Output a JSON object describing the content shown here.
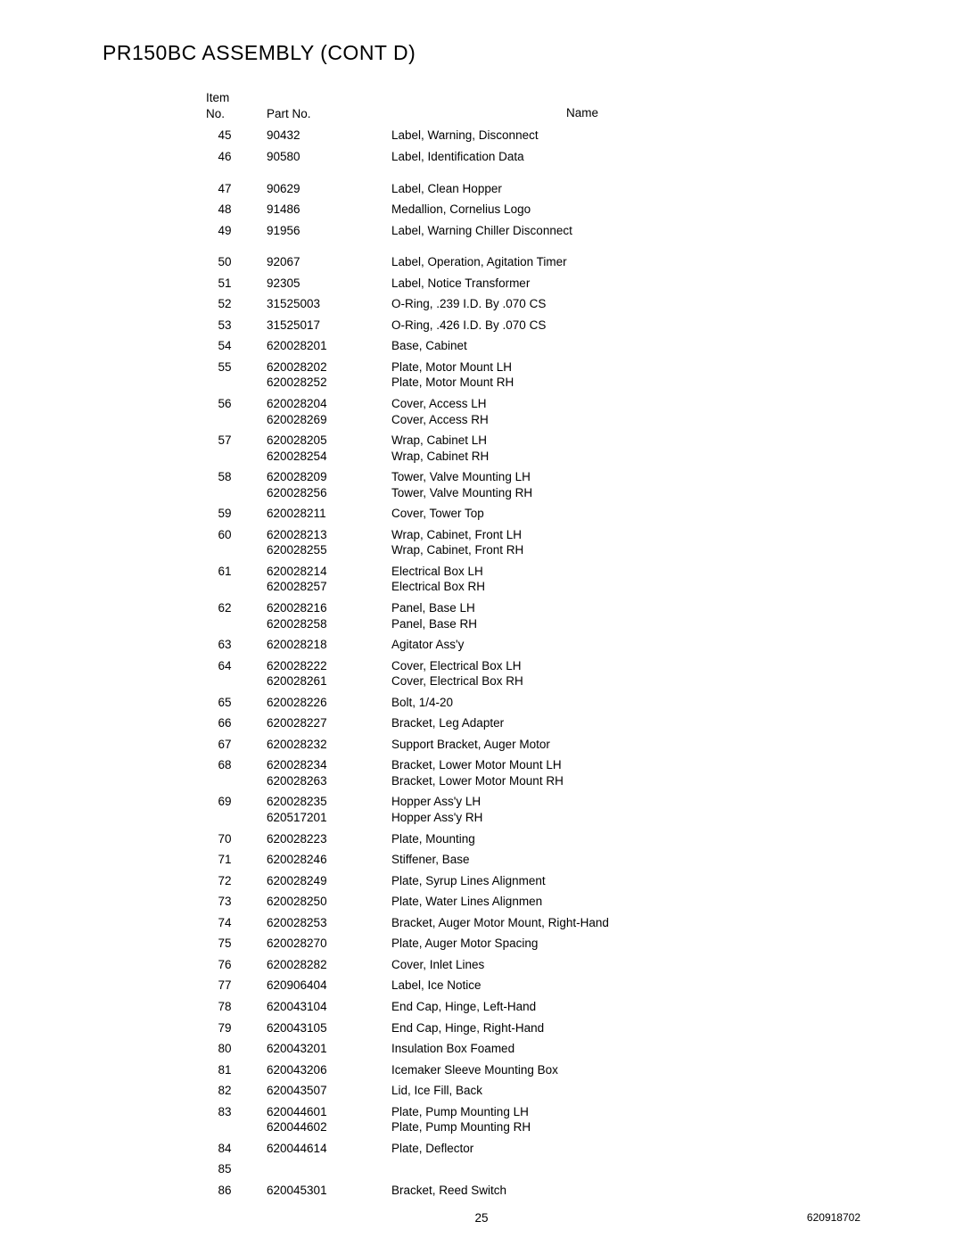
{
  "title": "PR150BC ASSEMBLY  (CONT D)",
  "headers": {
    "item_no_line1": "Item",
    "item_no_line2": "No.",
    "part_no": "Part No.",
    "name": "Name"
  },
  "rows": [
    {
      "item": "45",
      "parts": [
        "90432"
      ],
      "names": [
        "Label, Warning, Disconnect"
      ]
    },
    {
      "item": "46",
      "parts": [
        "90580"
      ],
      "names": [
        "Label, Identification Data"
      ]
    },
    {
      "item": "47",
      "parts": [
        "90629"
      ],
      "names": [
        "Label, Clean Hopper"
      ],
      "gap": true
    },
    {
      "item": "48",
      "parts": [
        "91486"
      ],
      "names": [
        "Medallion, Cornelius Logo"
      ]
    },
    {
      "item": "49",
      "parts": [
        "91956"
      ],
      "names": [
        "Label, Warning Chiller Disconnect"
      ]
    },
    {
      "item": "50",
      "parts": [
        "92067"
      ],
      "names": [
        "Label, Operation, Agitation Timer"
      ],
      "gap": true
    },
    {
      "item": "51",
      "parts": [
        "92305"
      ],
      "names": [
        "Label, Notice Transformer"
      ]
    },
    {
      "item": "52",
      "parts": [
        "31525003"
      ],
      "names": [
        "O-Ring, .239 I.D. By .070 CS"
      ]
    },
    {
      "item": "53",
      "parts": [
        "31525017"
      ],
      "names": [
        "O-Ring, .426 I.D. By .070 CS"
      ]
    },
    {
      "item": "54",
      "parts": [
        "620028201"
      ],
      "names": [
        "Base, Cabinet"
      ]
    },
    {
      "item": "55",
      "parts": [
        "620028202",
        "620028252"
      ],
      "names": [
        "Plate, Motor Mount LH",
        "Plate, Motor Mount RH"
      ]
    },
    {
      "item": "56",
      "parts": [
        "620028204",
        "620028269"
      ],
      "names": [
        "Cover, Access LH",
        "Cover, Access RH"
      ]
    },
    {
      "item": "57",
      "parts": [
        "620028205",
        "620028254"
      ],
      "names": [
        "Wrap, Cabinet LH",
        "Wrap, Cabinet RH"
      ]
    },
    {
      "item": "58",
      "parts": [
        "620028209",
        "620028256"
      ],
      "names": [
        "Tower, Valve Mounting LH",
        "Tower, Valve Mounting RH"
      ]
    },
    {
      "item": "59",
      "parts": [
        "620028211"
      ],
      "names": [
        "Cover, Tower Top"
      ]
    },
    {
      "item": "60",
      "parts": [
        "620028213",
        "620028255"
      ],
      "names": [
        "Wrap, Cabinet, Front LH",
        "Wrap, Cabinet, Front RH"
      ]
    },
    {
      "item": "61",
      "parts": [
        "620028214",
        "620028257"
      ],
      "names": [
        "Electrical Box LH",
        "Electrical Box RH"
      ]
    },
    {
      "item": "62",
      "parts": [
        "620028216",
        "620028258"
      ],
      "names": [
        "Panel, Base LH",
        "Panel, Base RH"
      ]
    },
    {
      "item": "63",
      "parts": [
        "620028218"
      ],
      "names": [
        "Agitator Ass'y"
      ]
    },
    {
      "item": "64",
      "parts": [
        "620028222",
        "620028261"
      ],
      "names": [
        "Cover, Electrical Box LH",
        "Cover, Electrical Box RH"
      ]
    },
    {
      "item": "65",
      "parts": [
        "620028226"
      ],
      "names": [
        "Bolt, 1/4-20"
      ]
    },
    {
      "item": "66",
      "parts": [
        "620028227"
      ],
      "names": [
        "Bracket, Leg Adapter"
      ]
    },
    {
      "item": "67",
      "parts": [
        "620028232"
      ],
      "names": [
        "Support Bracket, Auger Motor"
      ]
    },
    {
      "item": "68",
      "parts": [
        "620028234",
        "620028263"
      ],
      "names": [
        "Bracket, Lower Motor Mount LH",
        "Bracket, Lower Motor Mount RH"
      ]
    },
    {
      "item": "69",
      "parts": [
        "620028235",
        "620517201"
      ],
      "names": [
        "Hopper Ass'y LH",
        "Hopper Ass'y RH"
      ]
    },
    {
      "item": "70",
      "parts": [
        "620028223"
      ],
      "names": [
        "Plate, Mounting"
      ]
    },
    {
      "item": "71",
      "parts": [
        "620028246"
      ],
      "names": [
        "Stiffener, Base"
      ]
    },
    {
      "item": "72",
      "parts": [
        "620028249"
      ],
      "names": [
        "Plate, Syrup Lines Alignment"
      ]
    },
    {
      "item": "73",
      "parts": [
        "620028250"
      ],
      "names": [
        "Plate, Water Lines Alignmen"
      ]
    },
    {
      "item": "74",
      "parts": [
        "620028253"
      ],
      "names": [
        "Bracket, Auger Motor Mount, Right-Hand"
      ]
    },
    {
      "item": "75",
      "parts": [
        "620028270"
      ],
      "names": [
        "Plate, Auger Motor Spacing"
      ]
    },
    {
      "item": "76",
      "parts": [
        "620028282"
      ],
      "names": [
        "Cover, Inlet Lines"
      ]
    },
    {
      "item": "77",
      "parts": [
        "620906404"
      ],
      "names": [
        "Label, Ice Notice"
      ]
    },
    {
      "item": "78",
      "parts": [
        "620043104"
      ],
      "names": [
        "End Cap, Hinge, Left-Hand"
      ]
    },
    {
      "item": "79",
      "parts": [
        "620043105"
      ],
      "names": [
        "End Cap, Hinge, Right-Hand"
      ]
    },
    {
      "item": "80",
      "parts": [
        "620043201"
      ],
      "names": [
        "Insulation Box Foamed"
      ]
    },
    {
      "item": "81",
      "parts": [
        "620043206"
      ],
      "names": [
        "Icemaker Sleeve Mounting Box"
      ]
    },
    {
      "item": "82",
      "parts": [
        "620043507"
      ],
      "names": [
        "Lid, Ice Fill, Back"
      ]
    },
    {
      "item": "83",
      "parts": [
        "620044601",
        "620044602"
      ],
      "names": [
        "Plate, Pump Mounting LH",
        "Plate, Pump Mounting RH"
      ]
    },
    {
      "item": "84",
      "parts": [
        "620044614"
      ],
      "names": [
        "Plate, Deflector"
      ]
    },
    {
      "item": "85",
      "parts": [
        ""
      ],
      "names": [
        ""
      ]
    },
    {
      "item": "86",
      "parts": [
        "620045301"
      ],
      "names": [
        "Bracket, Reed Switch"
      ]
    }
  ],
  "page_number": "25",
  "doc_number": "620918702"
}
